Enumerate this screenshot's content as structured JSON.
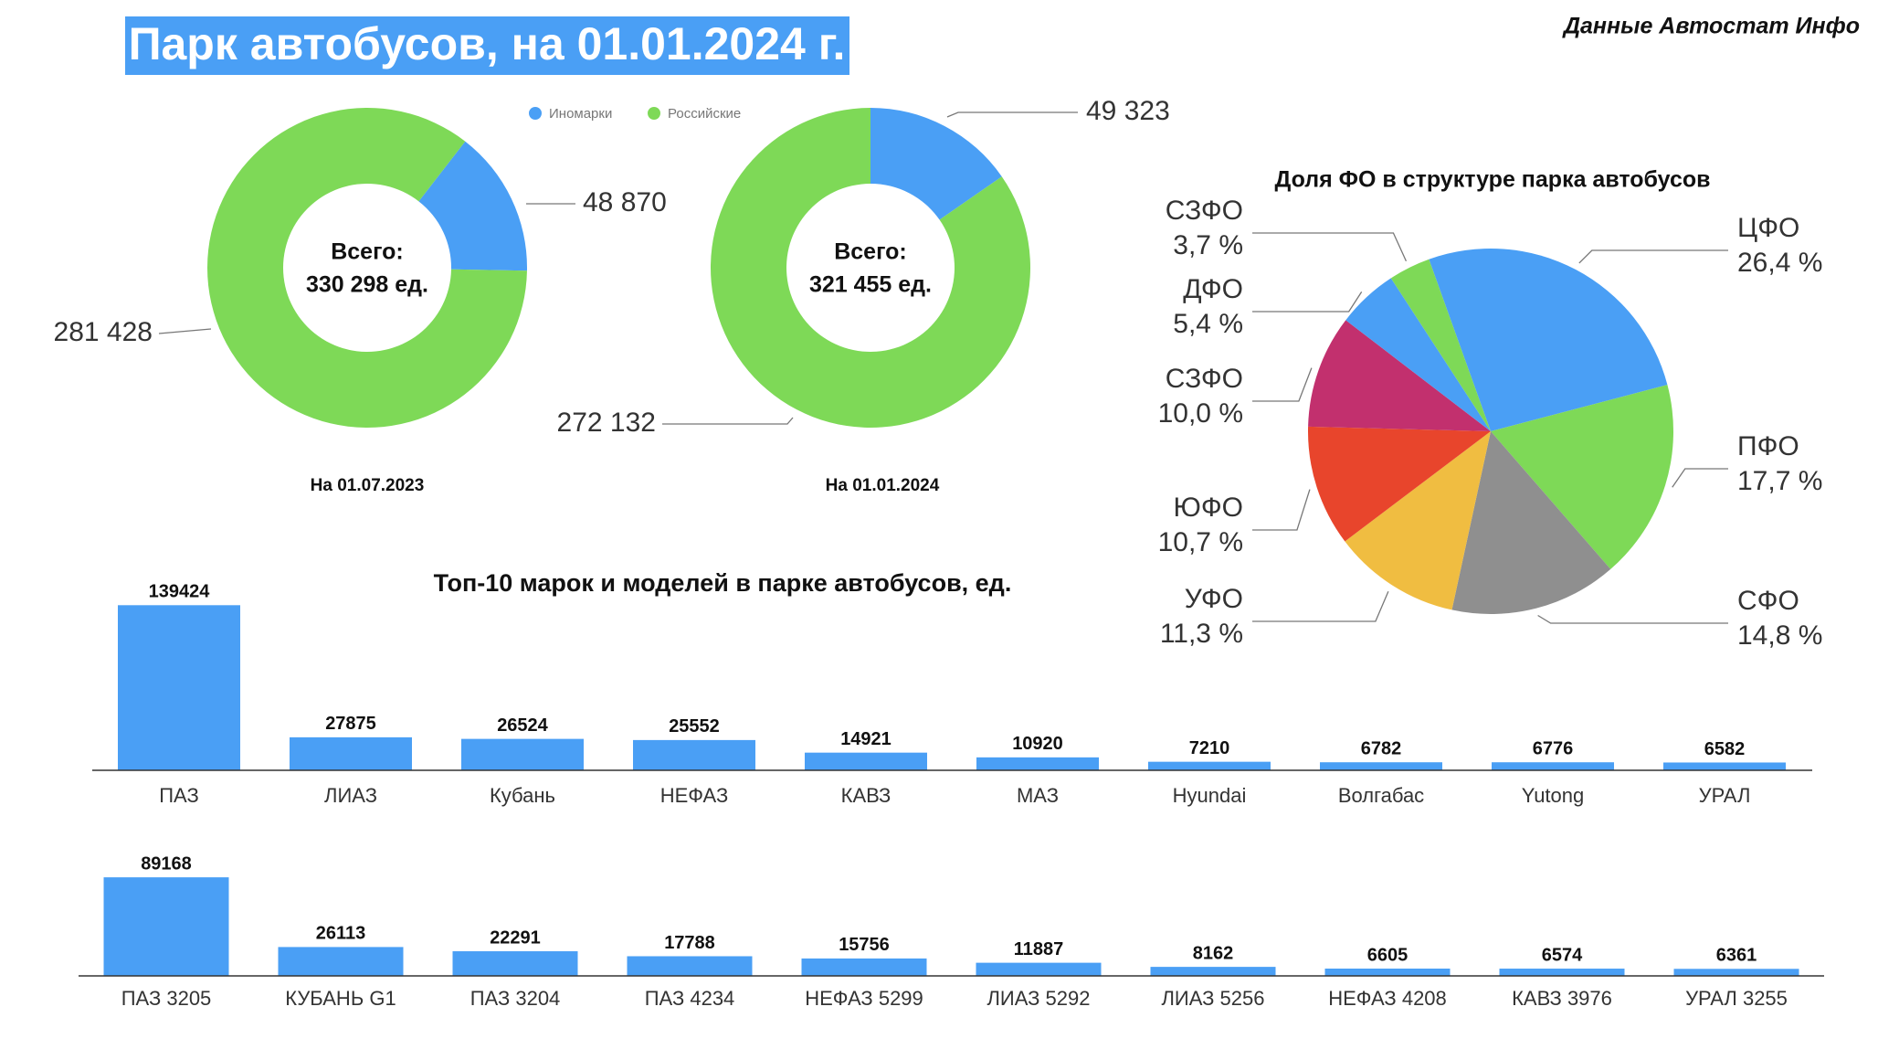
{
  "header": {
    "title": "Парк автобусов, на 01.01.2024 г.",
    "source": "Данные Автостат Инфо"
  },
  "chart_data": [
    {
      "type": "donut",
      "categories": [
        "Иномарки",
        "Российские"
      ],
      "colors": [
        "#4a9ff5",
        "#7ed957"
      ],
      "values": [
        48870,
        281428
      ],
      "value_labels": [
        "48 870",
        "281 428"
      ],
      "center_text": [
        "Всего:",
        "330 298 ед."
      ],
      "caption": "На 01.07.2023"
    },
    {
      "type": "donut",
      "categories": [
        "Иномарки",
        "Российские"
      ],
      "colors": [
        "#4a9ff5",
        "#7ed957"
      ],
      "values": [
        49323,
        272132
      ],
      "value_labels": [
        "49 323",
        "272 132"
      ],
      "center_text": [
        "Всего:",
        "321 455 ед."
      ],
      "caption": "На 01.01.2024"
    },
    {
      "type": "pie",
      "title": "Доля ФО в структуре парка автобусов",
      "categories": [
        "ЦФО",
        "ПФО",
        "СФО",
        "УФО",
        "ЮФО",
        "СЗФО",
        "ДФО",
        "СЗФО"
      ],
      "values": [
        26.4,
        17.7,
        14.8,
        11.3,
        10.7,
        10.0,
        5.4,
        3.7
      ],
      "value_labels": [
        "26,4 %",
        "17,7 %",
        "14,8 %",
        "11,3 %",
        "10,7 %",
        "10,0 %",
        "5,4 %",
        "3,7 %"
      ],
      "colors": [
        "#4a9ff5",
        "#7ed957",
        "#8f8f8f",
        "#f0bd41",
        "#e8452c",
        "#c2306e",
        "#4a9ff5",
        "#7ed957"
      ]
    },
    {
      "type": "bar",
      "title": "Топ-10 марок и моделей в парке автобусов, ед.",
      "color": "#4a9ff5",
      "categories": [
        "ПАЗ",
        "ЛИАЗ",
        "Кубань",
        "НЕФАЗ",
        "КАВЗ",
        "МАЗ",
        "Hyundai",
        "Волгабас",
        "Yutong",
        "УРАЛ"
      ],
      "values": [
        139424,
        27875,
        26524,
        25552,
        14921,
        10920,
        7210,
        6782,
        6776,
        6582
      ]
    },
    {
      "type": "bar",
      "color": "#4a9ff5",
      "categories": [
        "ПАЗ 3205",
        "КУБАНЬ G1",
        "ПАЗ 3204",
        "ПАЗ 4234",
        "НЕФАЗ 5299",
        "ЛИАЗ 5292",
        "ЛИАЗ 5256",
        "НЕФАЗ 4208",
        "КАВЗ 3976",
        "УРАЛ 3255"
      ],
      "values": [
        89168,
        26113,
        22291,
        17788,
        15756,
        11887,
        8162,
        6605,
        6574,
        6361
      ]
    }
  ]
}
